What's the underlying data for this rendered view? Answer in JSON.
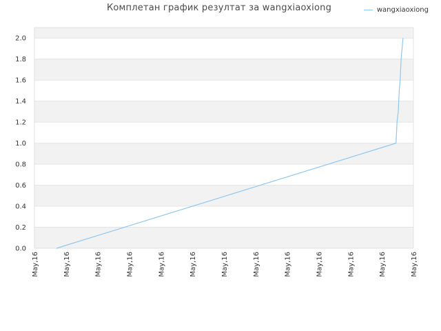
{
  "chart_data": {
    "type": "line",
    "title": "Комплетан график резултат за wangxiaoxiong",
    "xlabel": "",
    "ylabel": "",
    "x_tick_labels": [
      "May,16",
      "May,16",
      "May,16",
      "May,16",
      "May,16",
      "May,16",
      "May,16",
      "May,16",
      "May,16",
      "May,16",
      "May,16",
      "May,16",
      "May,16"
    ],
    "y_ticks": [
      "0.0",
      "0.2",
      "0.4",
      "0.6",
      "0.8",
      "1.0",
      "1.2",
      "1.4",
      "1.6",
      "1.8",
      "2.0"
    ],
    "ylim": [
      0,
      2.1
    ],
    "xlim": [
      0,
      12
    ],
    "grid": true,
    "legend_position": "top-right",
    "series": [
      {
        "name": "wangxiaoxiong",
        "color": "#8ec7ef",
        "x": [
          0.7,
          11.45,
          11.48,
          11.52,
          11.55,
          11.58,
          11.61,
          11.64,
          11.67
        ],
        "y": [
          0.0,
          1.0,
          1.2,
          1.3,
          1.5,
          1.6,
          1.8,
          1.9,
          2.0
        ]
      }
    ]
  }
}
